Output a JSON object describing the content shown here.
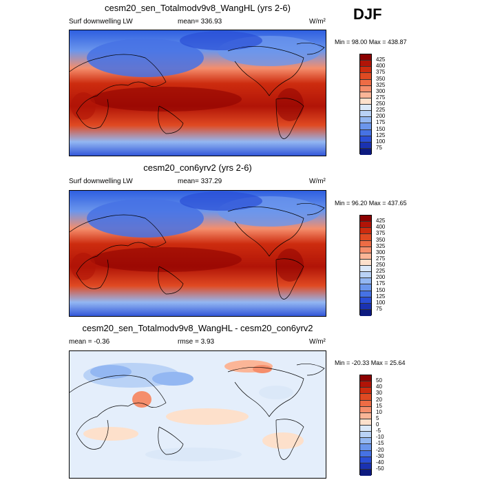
{
  "season": "DJF",
  "panels": [
    {
      "title": "cesm20_sen_Totalmodv9v8_WangHL (yrs 2-6)",
      "left_label": "Surf downwelling LW",
      "center_label": "mean= 336.93",
      "units": "W/m²",
      "minmax": "Min =  98.00 Max = 438.87",
      "colorbar_labels": [
        "425",
        "400",
        "375",
        "350",
        "325",
        "300",
        "275",
        "250",
        "225",
        "200",
        "175",
        "150",
        "125",
        "100",
        "75"
      ],
      "colorbar_colors": [
        "#8b0000",
        "#b11407",
        "#cd2c0f",
        "#e04a22",
        "#ee6c45",
        "#f58e6c",
        "#fbb597",
        "#fde0cb",
        "#dbe8f8",
        "#b9d2f6",
        "#93b7f2",
        "#6b96ec",
        "#4672e4",
        "#2a4ed6",
        "#1a32b2",
        "#0d1a80"
      ]
    },
    {
      "title": "cesm20_con6yrv2 (yrs 2-6)",
      "left_label": "Surf downwelling LW",
      "center_label": "mean= 337.29",
      "units": "W/m²",
      "minmax": "Min =  96.20 Max = 437.65",
      "colorbar_labels": [
        "425",
        "400",
        "375",
        "350",
        "325",
        "300",
        "275",
        "250",
        "225",
        "200",
        "175",
        "150",
        "125",
        "100",
        "75"
      ],
      "colorbar_colors": [
        "#8b0000",
        "#b11407",
        "#cd2c0f",
        "#e04a22",
        "#ee6c45",
        "#f58e6c",
        "#fbb597",
        "#fde0cb",
        "#dbe8f8",
        "#b9d2f6",
        "#93b7f2",
        "#6b96ec",
        "#4672e4",
        "#2a4ed6",
        "#1a32b2",
        "#0d1a80"
      ]
    },
    {
      "title": "cesm20_sen_Totalmodv9v8_WangHL - cesm20_con6yrv2",
      "left_label": "mean =  -0.36",
      "center_label": "rmse =  3.93",
      "units": "W/m²",
      "minmax": "Min = -20.33 Max =  25.64",
      "colorbar_labels": [
        "50",
        "40",
        "30",
        "20",
        "15",
        "10",
        "5",
        "0",
        "-5",
        "-10",
        "-15",
        "-20",
        "-30",
        "-40",
        "-50"
      ],
      "colorbar_colors": [
        "#8b0000",
        "#b11407",
        "#cd2c0f",
        "#e04a22",
        "#ee6c45",
        "#f58e6c",
        "#fbb597",
        "#fde0cb",
        "#dbe8f8",
        "#b9d2f6",
        "#93b7f2",
        "#6b96ec",
        "#4672e4",
        "#2a4ed6",
        "#1a32b2",
        "#0d1a80"
      ]
    }
  ]
}
